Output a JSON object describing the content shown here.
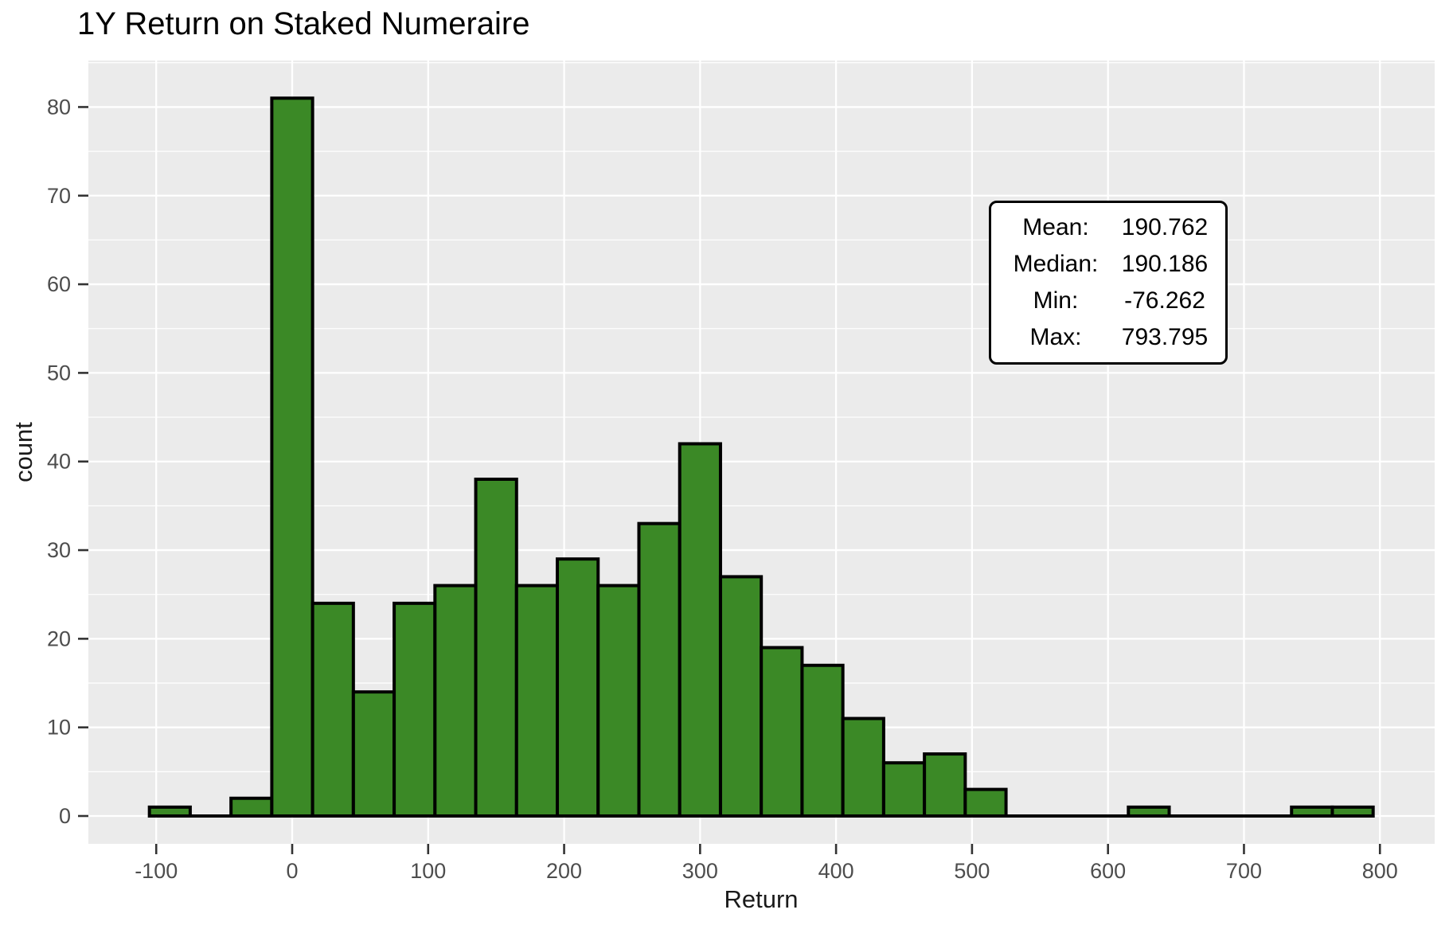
{
  "title": "1Y Return on Staked Numeraire",
  "x_axis": {
    "title": "Return",
    "tick_labels": [
      "-100",
      "0",
      "100",
      "200",
      "300",
      "400",
      "500",
      "600",
      "700",
      "800"
    ]
  },
  "y_axis": {
    "title": "count",
    "tick_labels": [
      "0",
      "10",
      "20",
      "30",
      "40",
      "50",
      "60",
      "70",
      "80"
    ]
  },
  "stats_box": {
    "rows": [
      {
        "label": "Mean:",
        "value": "190.762"
      },
      {
        "label": "Median:",
        "value": "190.186"
      },
      {
        "label": "Min:",
        "value": "-76.262"
      },
      {
        "label": "Max:",
        "value": "793.795"
      }
    ]
  },
  "colors": {
    "bar_fill": "#3B8926",
    "bar_stroke": "#000000",
    "panel_bg": "#EBEBEB",
    "grid": "#FFFFFF",
    "tick_label": "#4D4D4D",
    "tick_mark": "#333333",
    "title_text": "#000000",
    "axis_title_text": "#1A1A1A"
  },
  "chart_data": {
    "type": "bar",
    "subtype": "histogram",
    "title": "1Y Return on Staked Numeraire",
    "xlabel": "Return",
    "ylabel": "count",
    "bin_width": 30,
    "bins": [
      {
        "center": -90,
        "count": 1
      },
      {
        "center": -60,
        "count": 0
      },
      {
        "center": -30,
        "count": 2
      },
      {
        "center": 0,
        "count": 81
      },
      {
        "center": 30,
        "count": 24
      },
      {
        "center": 60,
        "count": 14
      },
      {
        "center": 90,
        "count": 24
      },
      {
        "center": 120,
        "count": 26
      },
      {
        "center": 150,
        "count": 38
      },
      {
        "center": 180,
        "count": 26
      },
      {
        "center": 210,
        "count": 29
      },
      {
        "center": 240,
        "count": 26
      },
      {
        "center": 270,
        "count": 33
      },
      {
        "center": 300,
        "count": 42
      },
      {
        "center": 330,
        "count": 27
      },
      {
        "center": 360,
        "count": 19
      },
      {
        "center": 390,
        "count": 17
      },
      {
        "center": 420,
        "count": 11
      },
      {
        "center": 450,
        "count": 6
      },
      {
        "center": 480,
        "count": 7
      },
      {
        "center": 510,
        "count": 3
      },
      {
        "center": 540,
        "count": 0
      },
      {
        "center": 570,
        "count": 0
      },
      {
        "center": 600,
        "count": 0
      },
      {
        "center": 630,
        "count": 1
      },
      {
        "center": 660,
        "count": 0
      },
      {
        "center": 690,
        "count": 0
      },
      {
        "center": 720,
        "count": 0
      },
      {
        "center": 750,
        "count": 1
      },
      {
        "center": 780,
        "count": 1
      }
    ],
    "x_ticks": [
      -100,
      0,
      100,
      200,
      300,
      400,
      500,
      600,
      700,
      800
    ],
    "y_ticks": [
      0,
      10,
      20,
      30,
      40,
      50,
      60,
      70,
      80
    ],
    "xlim": [
      -150,
      840
    ],
    "ylim": [
      0,
      85
    ],
    "grid": true,
    "legend": false,
    "stats": {
      "mean": 190.762,
      "median": 190.186,
      "min": -76.262,
      "max": 793.795
    }
  }
}
